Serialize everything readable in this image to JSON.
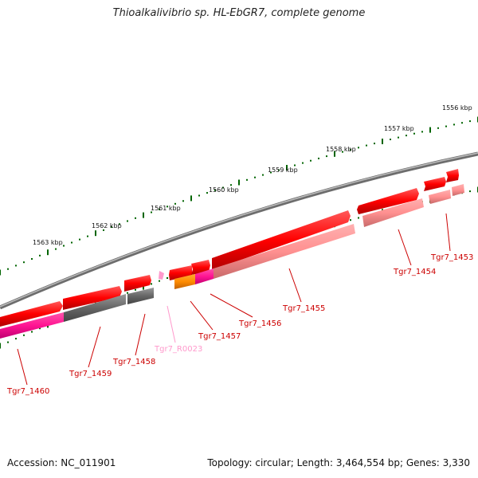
{
  "title": "Thioalkalivibrio sp. HL-EbGR7, complete genome",
  "footer": {
    "accession": "Accession: NC_011901",
    "summary": "Topology: circular; Length: 3,464,554 bp; Genes: 3,330"
  },
  "scale_ticks": [
    "1556 kbp",
    "1557 kbp",
    "1558 kbp",
    "1559 kbp",
    "1560 kbp",
    "1561 kbp",
    "1562 kbp",
    "1563 kbp"
  ],
  "genes": [
    {
      "id": "Tgr7_1453",
      "color": "#cc0000"
    },
    {
      "id": "Tgr7_1454",
      "color": "#cc0000"
    },
    {
      "id": "Tgr7_1455",
      "color": "#cc0000"
    },
    {
      "id": "Tgr7_1456",
      "color": "#cc0000"
    },
    {
      "id": "Tgr7_1457",
      "color": "#cc0000"
    },
    {
      "id": "Tgr7_R0023",
      "color": "#ff99cc"
    },
    {
      "id": "Tgr7_1458",
      "color": "#cc0000"
    },
    {
      "id": "Tgr7_1459",
      "color": "#cc0000"
    },
    {
      "id": "Tgr7_1460",
      "color": "#cc0000"
    }
  ],
  "colors": {
    "backbone": "#808080",
    "cds": "#ff0000",
    "cds_light": "#ff9999",
    "rrna": "#ff99cc",
    "magenta": "#ff1493",
    "orange": "#ff8c00",
    "gray": "#555555",
    "tick": "#006400"
  }
}
